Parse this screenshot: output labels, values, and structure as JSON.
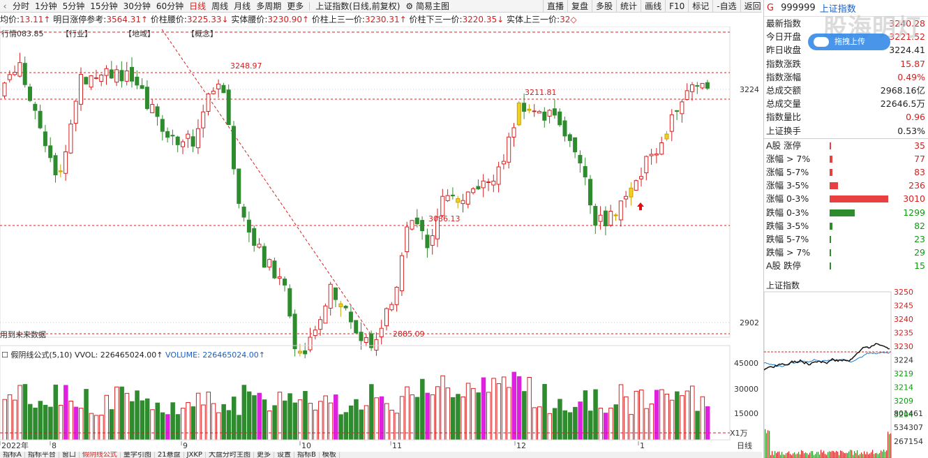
{
  "topbar": {
    "periods": [
      "分时",
      "1分钟",
      "5分钟",
      "15分钟",
      "30分钟",
      "60分钟",
      "日线",
      "周线",
      "月线",
      "多周期",
      "更多"
    ],
    "active_period": "日线",
    "chart_title": "上证指数(日线,前复权)",
    "main_chart": "简易主图",
    "tools": [
      "直播",
      "复盘",
      "多股",
      "统计",
      "画线",
      "F10",
      "标记",
      "-自选",
      "返回"
    ]
  },
  "infobar": [
    {
      "label": "均价:",
      "value": "13.11↑"
    },
    {
      "label": "明日涨停参考:",
      "value": "3564.31↑"
    },
    {
      "label": "价柱腰价:",
      "value": "3225.33↓"
    },
    {
      "label": "实体腰价:",
      "value": "3230.90↑"
    },
    {
      "label": "价柱上三一价:",
      "value": "3230.31↑"
    },
    {
      "label": "价柱下三一价:",
      "value": "3220.35↓"
    },
    {
      "label": "实体上三一价:",
      "value": "32◇"
    }
  ],
  "chart_tags": [
    "行情083.85",
    "【行业】",
    "【地域】",
    "【概念】"
  ],
  "chart_annotations": {
    "high1": "3248.97",
    "high2": "3211.81",
    "mid": "3036.13",
    "low": "2885.09",
    "future": "用到未来数据"
  },
  "y_axis_labels": [
    "3224",
    "2902"
  ],
  "volume": {
    "title": "假阴线公式(5,10)",
    "vvol": "VVOL: 226465024.00↑",
    "volume": "VOLUME: 226465024.00↑",
    "axis": [
      "45000",
      "30000",
      "15000"
    ],
    "unit": "X1万",
    "period": "日线"
  },
  "x_axis_labels": [
    "2022年",
    "8",
    "9",
    "10",
    "11",
    "12",
    "1"
  ],
  "bottom_tabs": [
    "指标A",
    "指标平台",
    "窗口",
    "假阴线公式",
    "量学引图",
    "21悬盘",
    "JXKP",
    "大盘分时主图",
    "更多",
    "设置",
    "指标B",
    "模板"
  ],
  "quote": {
    "g": "G",
    "code": "999999",
    "name": "上证指数",
    "rows": [
      {
        "label": "最新指数",
        "value": "3240.28",
        "color": "red"
      },
      {
        "label": "今日开盘",
        "value": "3221.52",
        "color": "red"
      },
      {
        "label": "昨日收盘",
        "value": "3224.41",
        "color": "dark"
      },
      {
        "label": "指数涨跌",
        "value": "15.87",
        "color": "red"
      },
      {
        "label": "指数涨幅",
        "value": "0.49%",
        "color": "red"
      },
      {
        "label": "总成交额",
        "value": "2968.16亿",
        "color": "dark"
      },
      {
        "label": "总成交量",
        "value": "22646.5万",
        "color": "dark"
      },
      {
        "label": "指数量比",
        "value": "0.96",
        "color": "red"
      },
      {
        "label": "上证换手",
        "value": "0.53%",
        "color": "dark"
      }
    ],
    "breadth": [
      {
        "label": "A股 涨停",
        "value": "35",
        "color": "red",
        "count": 35
      },
      {
        "label": "涨幅 > 7%",
        "value": "77",
        "color": "red",
        "count": 77
      },
      {
        "label": "涨幅 5-7%",
        "value": "83",
        "color": "red",
        "count": 83
      },
      {
        "label": "涨幅 3-5%",
        "value": "236",
        "color": "red",
        "count": 236
      },
      {
        "label": "涨幅 0-3%",
        "value": "3010",
        "color": "red",
        "count": 3010
      },
      {
        "label": "跌幅 0-3%",
        "value": "1299",
        "color": "green",
        "count": 1299
      },
      {
        "label": "跌幅 3-5%",
        "value": "82",
        "color": "green",
        "count": 82
      },
      {
        "label": "跌幅 5-7%",
        "value": "23",
        "color": "green",
        "count": 23
      },
      {
        "label": "跌幅 > 7%",
        "value": "29",
        "color": "green",
        "count": 29
      },
      {
        "label": "A股 跌停",
        "value": "15",
        "color": "green",
        "count": 15
      }
    ]
  },
  "watermark": {
    "text": "股海明灯",
    "sub": "拖拽上传"
  },
  "mini_chart": {
    "title": "上证指数",
    "axis": [
      "3250",
      "3245",
      "3240",
      "3235",
      "3230",
      "3224",
      "3219",
      "3214",
      "3209",
      "3204"
    ],
    "vol_axis": [
      "801461",
      "534307",
      "267154"
    ]
  },
  "colors": {
    "up": "#d62020",
    "down": "#2e8b2e",
    "magenta": "#e020e0",
    "yellow": "#f0d020",
    "blue": "#1a5fc8"
  }
}
